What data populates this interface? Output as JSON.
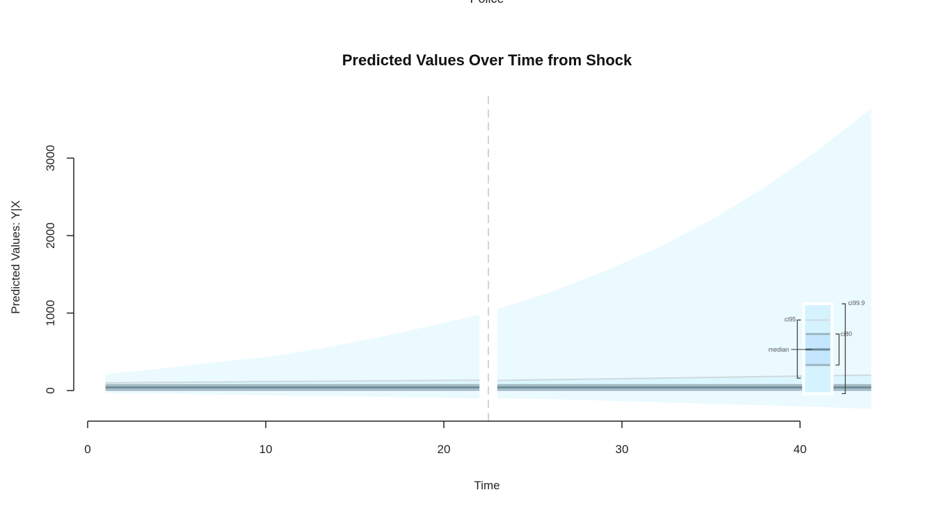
{
  "header": {
    "label": "Police"
  },
  "chart_data": {
    "type": "area",
    "title": "Predicted Values Over Time from Shock",
    "xlabel": "Time",
    "ylabel": "Predicted Values: Y|X",
    "xlim": [
      0,
      44
    ],
    "ylim": [
      -400,
      3800
    ],
    "x_ticks": [
      0,
      10,
      20,
      30,
      40
    ],
    "y_ticks": [
      0,
      1000,
      2000,
      3000
    ],
    "grid": false,
    "shock_time": 22.5,
    "colors": {
      "band_outer": "#eafaff",
      "band_inner": "#d4f3ff",
      "median_line": "#6e8a96",
      "ci80_line": "#9fb6c0",
      "ci95_line": "#cfd9dd",
      "shock_line": "#d4d4d4",
      "key_box": "#c4e6ff"
    },
    "segments": [
      {
        "x": [
          1,
          4,
          7,
          10,
          13,
          16,
          19,
          22
        ],
        "median": [
          40,
          40,
          40,
          40,
          40,
          40,
          40,
          40
        ],
        "ci80_low": [
          10,
          10,
          10,
          10,
          10,
          10,
          10,
          10
        ],
        "ci80_high": [
          70,
          70,
          70,
          70,
          70,
          70,
          70,
          70
        ],
        "ci95_high": [
          100,
          105,
          110,
          115,
          120,
          125,
          130,
          135
        ],
        "ci999_low": [
          -30,
          -40,
          -50,
          -60,
          -70,
          -80,
          -90,
          -100
        ],
        "ci999_high": [
          210,
          280,
          360,
          430,
          540,
          670,
          820,
          980
        ]
      },
      {
        "x": [
          23,
          26,
          29,
          32,
          35,
          38,
          41,
          44
        ],
        "median": [
          40,
          40,
          40,
          40,
          40,
          40,
          40,
          40
        ],
        "ci80_low": [
          10,
          10,
          10,
          10,
          10,
          10,
          10,
          10
        ],
        "ci80_high": [
          70,
          70,
          70,
          70,
          70,
          70,
          70,
          70
        ],
        "ci95_high": [
          130,
          140,
          150,
          160,
          170,
          180,
          190,
          200
        ],
        "ci999_low": [
          -100,
          -110,
          -130,
          -150,
          -170,
          -190,
          -210,
          -240
        ],
        "ci999_high": [
          1050,
          1270,
          1540,
          1840,
          2200,
          2620,
          3100,
          3640
        ]
      }
    ],
    "key": {
      "x_range": [
        40.2,
        41.8
      ],
      "ci999": [
        -40,
        1120
      ],
      "ci95": [
        160,
        910
      ],
      "ci80": [
        330,
        730
      ],
      "median": 530,
      "labels": {
        "ci999": "ci99.9",
        "ci95": "ci95",
        "ci80": "ci80",
        "median": "median"
      }
    }
  }
}
